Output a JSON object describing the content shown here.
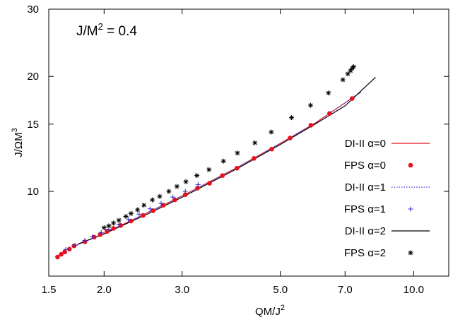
{
  "chart_data": {
    "type": "line",
    "title": "",
    "annotation": {
      "base": "J/M",
      "exp": "2",
      "rest": " = 0.4"
    },
    "xlabel": {
      "base": "QM/J",
      "exp": "2"
    },
    "ylabel": {
      "base": "J/ΩM",
      "exp": "3"
    },
    "x_scale": "log",
    "y_scale": "log",
    "xlim": [
      1.5,
      12.0
    ],
    "ylim": [
      6.0,
      30.0
    ],
    "x_ticks": [
      {
        "value": 1.5,
        "label": "1.5"
      },
      {
        "value": 2.0,
        "label": "2.0"
      },
      {
        "value": 3.0,
        "label": "3.0"
      },
      {
        "value": 5.0,
        "label": "5.0"
      },
      {
        "value": 7.0,
        "label": "7.0"
      },
      {
        "value": 10.0,
        "label": "10.0"
      }
    ],
    "y_ticks": [
      {
        "value": 10,
        "label": "10"
      },
      {
        "value": 15,
        "label": "15"
      },
      {
        "value": 20,
        "label": "20"
      },
      {
        "value": 30,
        "label": "30"
      }
    ],
    "grid": false,
    "legend_position": "right",
    "series": [
      {
        "name": "DI-II α=0",
        "kind": "line",
        "style": "solid",
        "color": "#e8101c",
        "x": [
          1.72,
          2.0,
          2.5,
          3.0,
          4.0,
          5.0,
          6.0,
          7.6
        ],
        "y": [
          7.21,
          7.76,
          8.78,
          9.73,
          11.56,
          13.36,
          15.11,
          18.2
        ]
      },
      {
        "name": "FPS α=0",
        "kind": "points",
        "marker": "dot",
        "color": "#e8101c",
        "x": [
          1.57,
          1.6,
          1.63,
          1.67,
          1.71,
          1.81,
          1.9,
          1.96,
          2.03,
          2.1,
          2.18,
          2.3,
          2.45,
          2.58,
          2.72,
          2.89,
          3.05,
          3.25,
          3.46,
          3.7,
          3.99,
          4.36,
          4.78,
          5.26,
          5.86,
          6.46,
          7.26
        ],
        "y": [
          6.73,
          6.84,
          6.94,
          7.06,
          7.2,
          7.38,
          7.59,
          7.71,
          7.85,
          8.0,
          8.14,
          8.36,
          8.65,
          8.9,
          9.2,
          9.5,
          9.8,
          10.2,
          10.5,
          11.0,
          11.5,
          12.2,
          12.9,
          13.8,
          14.9,
          16.0,
          17.5
        ]
      },
      {
        "name": "DI-II α=1",
        "kind": "line",
        "style": "dotted",
        "color": "#3a3ad8",
        "x": [
          1.72,
          2.0,
          2.5,
          3.0,
          4.0,
          5.0,
          6.0,
          7.6
        ],
        "y": [
          7.21,
          7.76,
          8.78,
          9.73,
          11.56,
          13.36,
          15.11,
          18.2
        ]
      },
      {
        "name": "FPS α=1",
        "kind": "points",
        "marker": "plus",
        "color": "#2a2ac8",
        "x": [
          1.64,
          1.72,
          1.81,
          1.88,
          1.97,
          2.05,
          2.16,
          2.27,
          2.4,
          2.54,
          2.69,
          2.86,
          3.05,
          3.26
        ],
        "y": [
          7.05,
          7.22,
          7.44,
          7.6,
          7.8,
          7.96,
          8.2,
          8.44,
          8.72,
          9.0,
          9.3,
          9.66,
          10.0,
          10.42
        ]
      },
      {
        "name": "DI-II α=2",
        "kind": "line",
        "style": "solid",
        "color": "#000000",
        "x": [
          1.75,
          2.0,
          2.5,
          3.0,
          4.0,
          5.0,
          6.0,
          7.0,
          8.2
        ],
        "y": [
          7.29,
          7.74,
          8.71,
          9.65,
          11.48,
          13.27,
          15.02,
          16.75,
          19.9
        ]
      },
      {
        "name": "FPS α=2",
        "kind": "points",
        "marker": "asterisk",
        "color": "#000000",
        "x": [
          2.0,
          2.05,
          2.1,
          2.16,
          2.24,
          2.3,
          2.38,
          2.46,
          2.57,
          2.67,
          2.8,
          2.92,
          3.06,
          3.24,
          3.45,
          3.72,
          4.0,
          4.38,
          4.77,
          5.3,
          5.85,
          6.42,
          6.92,
          7.1,
          7.2,
          7.26,
          7.32
        ],
        "y": [
          8.03,
          8.12,
          8.26,
          8.4,
          8.6,
          8.75,
          8.95,
          9.2,
          9.5,
          9.7,
          10.0,
          10.3,
          10.6,
          11.0,
          11.4,
          12.0,
          12.6,
          13.4,
          14.3,
          15.6,
          16.8,
          18.1,
          19.6,
          20.3,
          20.7,
          21.0,
          21.2
        ]
      }
    ]
  }
}
